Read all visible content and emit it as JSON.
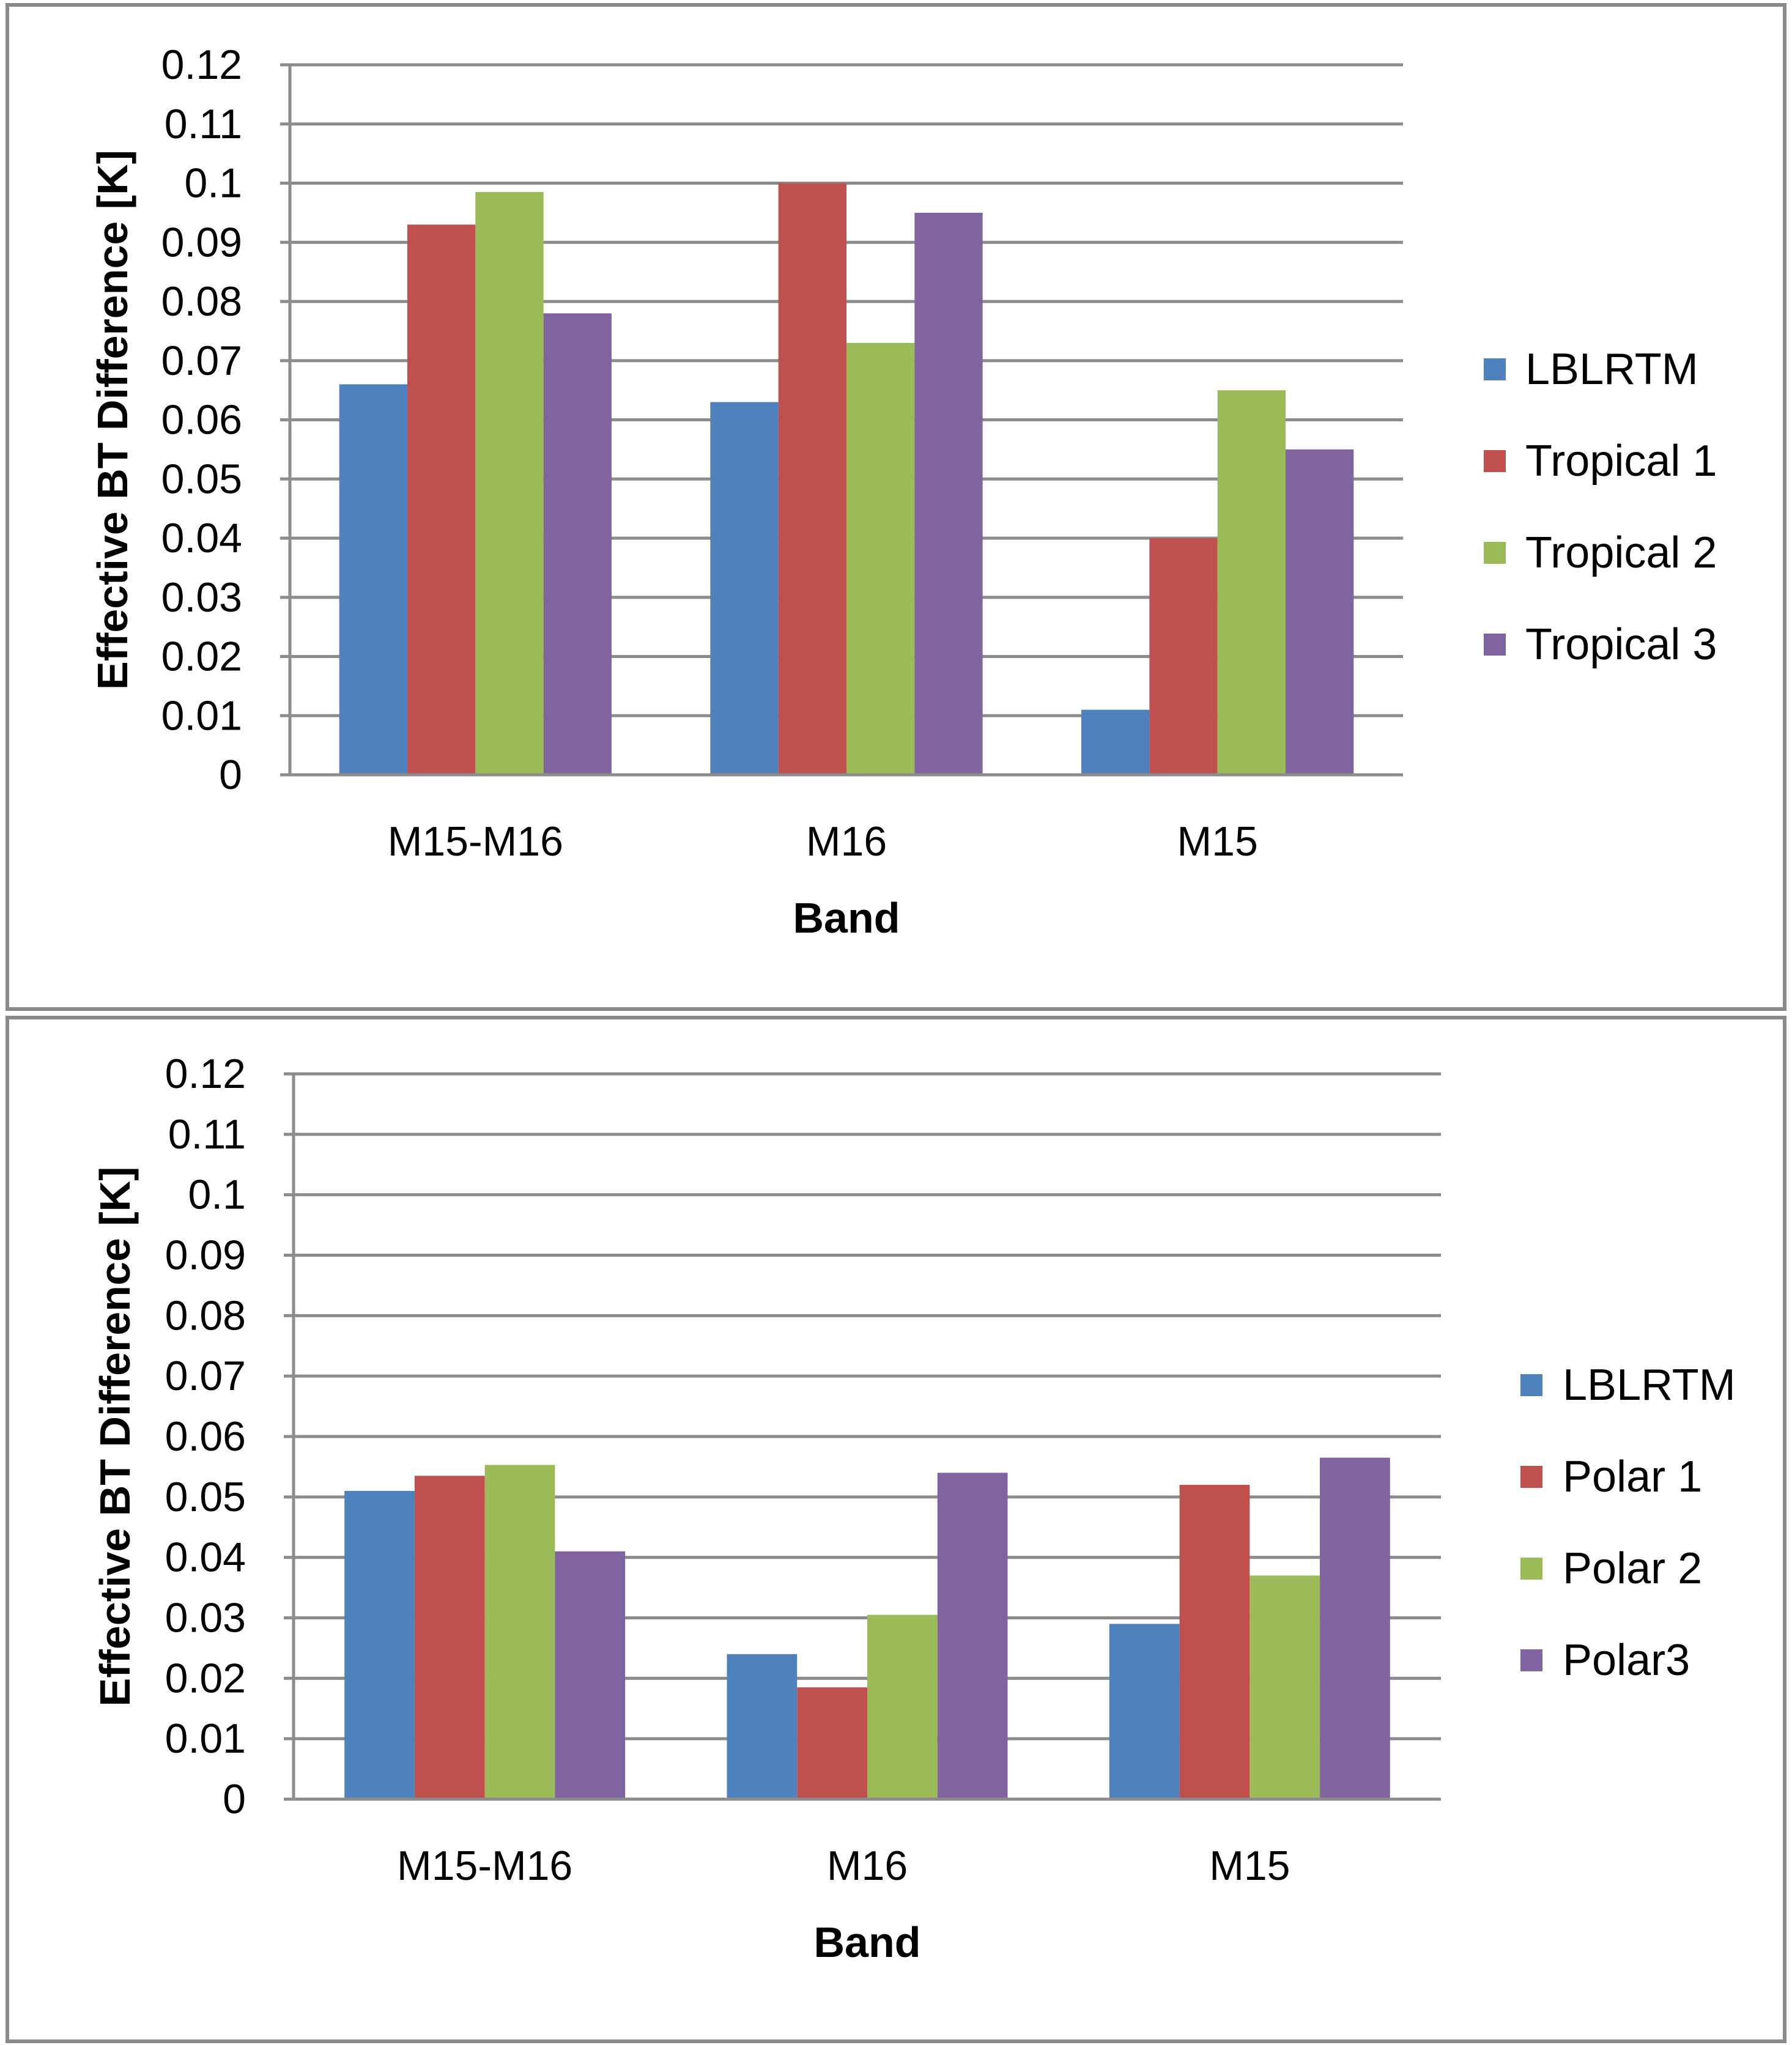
{
  "chart_data": [
    {
      "type": "bar",
      "title": "",
      "xlabel": "Band",
      "ylabel": "Effective BT Difference [K]",
      "ylim": [
        0,
        0.12
      ],
      "ytick_step": 0.01,
      "yticks": [
        "0",
        "0.01",
        "0.02",
        "0.03",
        "0.04",
        "0.05",
        "0.06",
        "0.07",
        "0.08",
        "0.09",
        "0.1",
        "0.11",
        "0.12"
      ],
      "grid": true,
      "legend_position": "right",
      "categories": [
        "M15-M16",
        "M16",
        "M15"
      ],
      "series": [
        {
          "name": "LBLRTM",
          "color": "#4F81BD",
          "values": [
            0.066,
            0.063,
            0.011
          ]
        },
        {
          "name": "Tropical 1",
          "color": "#C0504D",
          "values": [
            0.093,
            0.1,
            0.04
          ]
        },
        {
          "name": "Tropical 2",
          "color": "#9BBB59",
          "values": [
            0.0985,
            0.073,
            0.065
          ]
        },
        {
          "name": "Tropical 3",
          "color": "#8064A2",
          "values": [
            0.078,
            0.095,
            0.055
          ]
        }
      ]
    },
    {
      "type": "bar",
      "title": "",
      "xlabel": "Band",
      "ylabel": "Effective BT Difference [K]",
      "ylim": [
        0,
        0.12
      ],
      "ytick_step": 0.01,
      "yticks": [
        "0",
        "0.01",
        "0.02",
        "0.03",
        "0.04",
        "0.05",
        "0.06",
        "0.07",
        "0.08",
        "0.09",
        "0.1",
        "0.11",
        "0.12"
      ],
      "grid": true,
      "legend_position": "right",
      "categories": [
        "M15-M16",
        "M16",
        "M15"
      ],
      "series": [
        {
          "name": "LBLRTM",
          "color": "#4F81BD",
          "values": [
            0.051,
            0.024,
            0.029
          ]
        },
        {
          "name": "Polar 1",
          "color": "#C0504D",
          "values": [
            0.0535,
            0.0185,
            0.052
          ]
        },
        {
          "name": "Polar 2",
          "color": "#9BBB59",
          "values": [
            0.0553,
            0.0305,
            0.037
          ]
        },
        {
          "name": "Polar3",
          "color": "#8064A2",
          "values": [
            0.041,
            0.054,
            0.0565
          ]
        }
      ]
    }
  ]
}
